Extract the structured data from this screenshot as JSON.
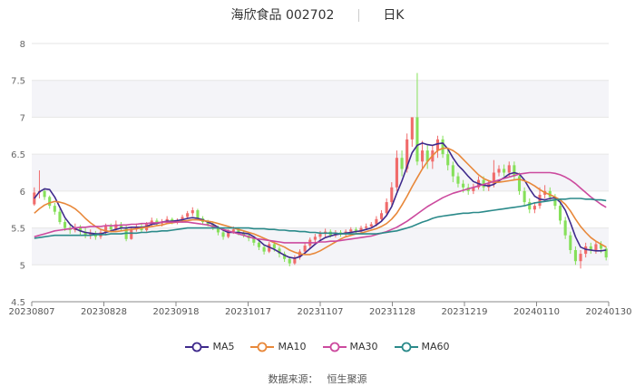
{
  "header": {
    "title": "海欣食品 002702",
    "period": "日K"
  },
  "source": {
    "label": "数据来源：",
    "provider": "恒生聚源"
  },
  "chart_data": {
    "type": "candlestick",
    "title": "海欣食品 002702",
    "ylim": [
      4.5,
      8
    ],
    "yticks": [
      "4.5",
      "5",
      "5.5",
      "6",
      "6.5",
      "7",
      "7.5",
      "8"
    ],
    "xticks": [
      "20230807",
      "20230828",
      "20230918",
      "20231017",
      "20231107",
      "20231128",
      "20231219",
      "20240110",
      "20240130"
    ],
    "colors": {
      "up": "#f06b6b",
      "down": "#86e05a",
      "MA5": "#3f2a8c",
      "MA10": "#e8883a",
      "MA30": "#cc4a9e",
      "MA60": "#2b8a8a",
      "band": "#f4f4f8"
    },
    "candles": [
      [
        5.82,
        5.98,
        5.8,
        6.05
      ],
      [
        5.98,
        6.0,
        5.9,
        6.28
      ],
      [
        6.0,
        5.92,
        5.88,
        6.04
      ],
      [
        5.92,
        5.8,
        5.76,
        5.94
      ],
      [
        5.8,
        5.72,
        5.68,
        5.84
      ],
      [
        5.72,
        5.58,
        5.55,
        5.76
      ],
      [
        5.58,
        5.5,
        5.46,
        5.62
      ],
      [
        5.5,
        5.47,
        5.42,
        5.55
      ],
      [
        5.47,
        5.5,
        5.44,
        5.56
      ],
      [
        5.5,
        5.45,
        5.4,
        5.54
      ],
      [
        5.45,
        5.4,
        5.36,
        5.5
      ],
      [
        5.4,
        5.43,
        5.35,
        5.48
      ],
      [
        5.43,
        5.38,
        5.34,
        5.46
      ],
      [
        5.38,
        5.44,
        5.35,
        5.48
      ],
      [
        5.44,
        5.52,
        5.4,
        5.56
      ],
      [
        5.52,
        5.48,
        5.44,
        5.56
      ],
      [
        5.48,
        5.55,
        5.46,
        5.6
      ],
      [
        5.55,
        5.5,
        5.47,
        5.58
      ],
      [
        5.5,
        5.35,
        5.32,
        5.53
      ],
      [
        5.35,
        5.48,
        5.34,
        5.52
      ],
      [
        5.48,
        5.52,
        5.45,
        5.56
      ],
      [
        5.52,
        5.47,
        5.44,
        5.55
      ],
      [
        5.47,
        5.55,
        5.45,
        5.58
      ],
      [
        5.55,
        5.6,
        5.52,
        5.64
      ],
      [
        5.6,
        5.56,
        5.53,
        5.63
      ],
      [
        5.56,
        5.58,
        5.52,
        5.62
      ],
      [
        5.58,
        5.62,
        5.55,
        5.66
      ],
      [
        5.62,
        5.58,
        5.55,
        5.64
      ],
      [
        5.58,
        5.6,
        5.55,
        5.63
      ],
      [
        5.6,
        5.65,
        5.57,
        5.68
      ],
      [
        5.65,
        5.7,
        5.62,
        5.73
      ],
      [
        5.7,
        5.74,
        5.66,
        5.78
      ],
      [
        5.74,
        5.63,
        5.6,
        5.76
      ],
      [
        5.63,
        5.58,
        5.54,
        5.66
      ],
      [
        5.58,
        5.55,
        5.52,
        5.61
      ],
      [
        5.55,
        5.5,
        5.47,
        5.58
      ],
      [
        5.5,
        5.44,
        5.4,
        5.53
      ],
      [
        5.44,
        5.38,
        5.34,
        5.47
      ],
      [
        5.38,
        5.45,
        5.36,
        5.48
      ],
      [
        5.45,
        5.48,
        5.42,
        5.52
      ],
      [
        5.48,
        5.44,
        5.4,
        5.51
      ],
      [
        5.44,
        5.4,
        5.37,
        5.47
      ],
      [
        5.4,
        5.36,
        5.32,
        5.43
      ],
      [
        5.36,
        5.3,
        5.26,
        5.39
      ],
      [
        5.3,
        5.24,
        5.2,
        5.33
      ],
      [
        5.24,
        5.18,
        5.14,
        5.27
      ],
      [
        5.18,
        5.28,
        5.16,
        5.31
      ],
      [
        5.28,
        5.22,
        5.18,
        5.31
      ],
      [
        5.22,
        5.15,
        5.1,
        5.25
      ],
      [
        5.15,
        5.08,
        5.04,
        5.18
      ],
      [
        5.08,
        5.02,
        4.98,
        5.11
      ],
      [
        5.02,
        5.1,
        5.0,
        5.13
      ],
      [
        5.1,
        5.18,
        5.07,
        5.21
      ],
      [
        5.18,
        5.26,
        5.15,
        5.3
      ],
      [
        5.26,
        5.34,
        5.22,
        5.37
      ],
      [
        5.34,
        5.38,
        5.3,
        5.42
      ],
      [
        5.38,
        5.42,
        5.34,
        5.46
      ],
      [
        5.42,
        5.45,
        5.38,
        5.49
      ],
      [
        5.45,
        5.4,
        5.37,
        5.48
      ],
      [
        5.4,
        5.44,
        5.37,
        5.47
      ],
      [
        5.44,
        5.42,
        5.38,
        5.47
      ],
      [
        5.42,
        5.45,
        5.39,
        5.48
      ],
      [
        5.45,
        5.48,
        5.42,
        5.51
      ],
      [
        5.48,
        5.45,
        5.42,
        5.51
      ],
      [
        5.45,
        5.5,
        5.43,
        5.53
      ],
      [
        5.5,
        5.52,
        5.47,
        5.56
      ],
      [
        5.52,
        5.55,
        5.49,
        5.58
      ],
      [
        5.55,
        5.62,
        5.52,
        5.66
      ],
      [
        5.62,
        5.7,
        5.58,
        5.74
      ],
      [
        5.7,
        5.85,
        5.66,
        5.9
      ],
      [
        5.85,
        6.05,
        5.8,
        6.12
      ],
      [
        6.05,
        6.45,
        6.0,
        6.55
      ],
      [
        6.45,
        6.3,
        6.2,
        6.55
      ],
      [
        6.3,
        6.7,
        6.25,
        6.78
      ],
      [
        6.7,
        7.0,
        6.6,
        7.0
      ],
      [
        7.0,
        6.4,
        6.35,
        7.6
      ],
      [
        6.4,
        6.55,
        6.3,
        6.68
      ],
      [
        6.55,
        6.4,
        6.3,
        6.62
      ],
      [
        6.4,
        6.55,
        6.3,
        6.62
      ],
      [
        6.55,
        6.7,
        6.45,
        6.75
      ],
      [
        6.7,
        6.5,
        6.45,
        6.75
      ],
      [
        6.5,
        6.35,
        6.28,
        6.56
      ],
      [
        6.35,
        6.2,
        6.12,
        6.4
      ],
      [
        6.2,
        6.1,
        6.05,
        6.25
      ],
      [
        6.1,
        6.05,
        5.98,
        6.15
      ],
      [
        6.05,
        6.0,
        5.95,
        6.1
      ],
      [
        6.0,
        6.05,
        5.96,
        6.1
      ],
      [
        6.05,
        6.15,
        6.02,
        6.2
      ],
      [
        6.15,
        6.05,
        6.0,
        6.2
      ],
      [
        6.05,
        6.1,
        6.0,
        6.15
      ],
      [
        6.1,
        6.25,
        6.05,
        6.42
      ],
      [
        6.25,
        6.3,
        6.2,
        6.35
      ],
      [
        6.3,
        6.25,
        6.2,
        6.36
      ],
      [
        6.25,
        6.35,
        6.2,
        6.4
      ],
      [
        6.35,
        6.2,
        6.15,
        6.4
      ],
      [
        6.2,
        6.0,
        5.95,
        6.25
      ],
      [
        6.0,
        5.85,
        5.8,
        6.05
      ],
      [
        5.85,
        5.75,
        5.7,
        5.9
      ],
      [
        5.75,
        5.8,
        5.7,
        5.85
      ],
      [
        5.8,
        5.95,
        5.76,
        6.05
      ],
      [
        5.95,
        6.0,
        5.9,
        6.08
      ],
      [
        6.0,
        5.92,
        5.88,
        6.05
      ],
      [
        5.92,
        5.8,
        5.75,
        5.96
      ],
      [
        5.8,
        5.6,
        5.55,
        5.85
      ],
      [
        5.6,
        5.4,
        5.35,
        5.65
      ],
      [
        5.4,
        5.2,
        5.15,
        5.45
      ],
      [
        5.2,
        5.05,
        5.0,
        5.25
      ],
      [
        5.05,
        5.15,
        4.95,
        5.2
      ],
      [
        5.15,
        5.25,
        5.1,
        5.3
      ],
      [
        5.25,
        5.2,
        5.15,
        5.3
      ],
      [
        5.2,
        5.28,
        5.15,
        5.32
      ],
      [
        5.28,
        5.22,
        5.16,
        5.32
      ],
      [
        5.22,
        5.1,
        5.06,
        5.25
      ]
    ],
    "series": [
      {
        "name": "MA5",
        "values": [
          5.9,
          5.99,
          6.03,
          6.02,
          5.92,
          5.78,
          5.64,
          5.55,
          5.49,
          5.46,
          5.44,
          5.43,
          5.42,
          5.42,
          5.44,
          5.46,
          5.48,
          5.5,
          5.5,
          5.51,
          5.51,
          5.51,
          5.52,
          5.55,
          5.56,
          5.58,
          5.59,
          5.59,
          5.6,
          5.61,
          5.63,
          5.64,
          5.63,
          5.61,
          5.58,
          5.55,
          5.51,
          5.47,
          5.44,
          5.44,
          5.44,
          5.43,
          5.42,
          5.38,
          5.33,
          5.27,
          5.24,
          5.21,
          5.17,
          5.13,
          5.1,
          5.09,
          5.11,
          5.16,
          5.22,
          5.28,
          5.33,
          5.37,
          5.39,
          5.41,
          5.42,
          5.43,
          5.44,
          5.45,
          5.46,
          5.48,
          5.5,
          5.54,
          5.59,
          5.67,
          5.79,
          5.97,
          6.14,
          6.33,
          6.52,
          6.62,
          6.65,
          6.63,
          6.62,
          6.64,
          6.65,
          6.57,
          6.45,
          6.35,
          6.28,
          6.2,
          6.13,
          6.1,
          6.08,
          6.07,
          6.09,
          6.14,
          6.18,
          6.23,
          6.25,
          6.23,
          6.15,
          6.03,
          5.93,
          5.89,
          5.88,
          5.9,
          5.91,
          5.85,
          5.74,
          5.57,
          5.38,
          5.24,
          5.21,
          5.2,
          5.19,
          5.19,
          5.2
        ]
      },
      {
        "name": "MA10",
        "values": [
          5.7,
          5.76,
          5.81,
          5.84,
          5.86,
          5.85,
          5.83,
          5.8,
          5.76,
          5.7,
          5.63,
          5.57,
          5.52,
          5.48,
          5.46,
          5.45,
          5.45,
          5.46,
          5.47,
          5.48,
          5.49,
          5.5,
          5.51,
          5.52,
          5.53,
          5.54,
          5.56,
          5.57,
          5.58,
          5.59,
          5.6,
          5.61,
          5.61,
          5.6,
          5.59,
          5.58,
          5.56,
          5.54,
          5.52,
          5.5,
          5.48,
          5.46,
          5.44,
          5.42,
          5.39,
          5.36,
          5.33,
          5.3,
          5.27,
          5.24,
          5.2,
          5.17,
          5.15,
          5.14,
          5.14,
          5.16,
          5.19,
          5.23,
          5.27,
          5.31,
          5.35,
          5.38,
          5.4,
          5.42,
          5.43,
          5.45,
          5.47,
          5.49,
          5.52,
          5.56,
          5.62,
          5.7,
          5.81,
          5.93,
          6.06,
          6.18,
          6.3,
          6.4,
          6.48,
          6.55,
          6.58,
          6.58,
          6.55,
          6.5,
          6.43,
          6.36,
          6.29,
          6.22,
          6.17,
          6.14,
          6.12,
          6.12,
          6.13,
          6.14,
          6.15,
          6.16,
          6.14,
          6.11,
          6.07,
          6.02,
          5.98,
          5.95,
          5.92,
          5.88,
          5.82,
          5.73,
          5.62,
          5.52,
          5.44,
          5.37,
          5.32,
          5.28,
          5.24
        ]
      },
      {
        "name": "MA30",
        "values": [
          5.38,
          5.4,
          5.42,
          5.44,
          5.46,
          5.47,
          5.48,
          5.49,
          5.5,
          5.51,
          5.51,
          5.52,
          5.52,
          5.52,
          5.53,
          5.53,
          5.53,
          5.54,
          5.54,
          5.55,
          5.55,
          5.56,
          5.56,
          5.57,
          5.57,
          5.58,
          5.58,
          5.58,
          5.58,
          5.58,
          5.58,
          5.57,
          5.56,
          5.55,
          5.54,
          5.52,
          5.5,
          5.48,
          5.46,
          5.44,
          5.42,
          5.4,
          5.38,
          5.36,
          5.35,
          5.34,
          5.33,
          5.32,
          5.31,
          5.3,
          5.3,
          5.3,
          5.3,
          5.3,
          5.3,
          5.3,
          5.31,
          5.31,
          5.32,
          5.32,
          5.33,
          5.34,
          5.35,
          5.36,
          5.37,
          5.38,
          5.39,
          5.41,
          5.43,
          5.45,
          5.48,
          5.51,
          5.55,
          5.59,
          5.64,
          5.69,
          5.74,
          5.79,
          5.83,
          5.87,
          5.91,
          5.94,
          5.97,
          5.99,
          6.01,
          6.03,
          6.05,
          6.07,
          6.09,
          6.11,
          6.13,
          6.15,
          6.17,
          6.19,
          6.21,
          6.23,
          6.24,
          6.25,
          6.25,
          6.25,
          6.25,
          6.25,
          6.24,
          6.22,
          6.19,
          6.15,
          6.1,
          6.04,
          5.98,
          5.92,
          5.87,
          5.82,
          5.78
        ]
      },
      {
        "name": "MA60",
        "values": [
          5.36,
          5.37,
          5.38,
          5.39,
          5.4,
          5.4,
          5.4,
          5.4,
          5.4,
          5.4,
          5.4,
          5.4,
          5.41,
          5.41,
          5.41,
          5.42,
          5.42,
          5.42,
          5.43,
          5.43,
          5.43,
          5.44,
          5.44,
          5.45,
          5.45,
          5.46,
          5.46,
          5.47,
          5.48,
          5.49,
          5.5,
          5.5,
          5.5,
          5.5,
          5.5,
          5.5,
          5.5,
          5.5,
          5.5,
          5.5,
          5.5,
          5.5,
          5.5,
          5.49,
          5.49,
          5.49,
          5.48,
          5.48,
          5.47,
          5.47,
          5.46,
          5.46,
          5.45,
          5.45,
          5.44,
          5.44,
          5.43,
          5.43,
          5.43,
          5.43,
          5.42,
          5.42,
          5.42,
          5.42,
          5.42,
          5.42,
          5.42,
          5.42,
          5.43,
          5.44,
          5.45,
          5.46,
          5.48,
          5.5,
          5.52,
          5.55,
          5.58,
          5.6,
          5.63,
          5.65,
          5.66,
          5.67,
          5.68,
          5.69,
          5.7,
          5.7,
          5.71,
          5.71,
          5.72,
          5.73,
          5.74,
          5.75,
          5.76,
          5.77,
          5.78,
          5.79,
          5.8,
          5.82,
          5.84,
          5.85,
          5.86,
          5.87,
          5.88,
          5.89,
          5.89,
          5.9,
          5.9,
          5.9,
          5.89,
          5.89,
          5.88,
          5.88,
          5.87
        ]
      }
    ]
  }
}
